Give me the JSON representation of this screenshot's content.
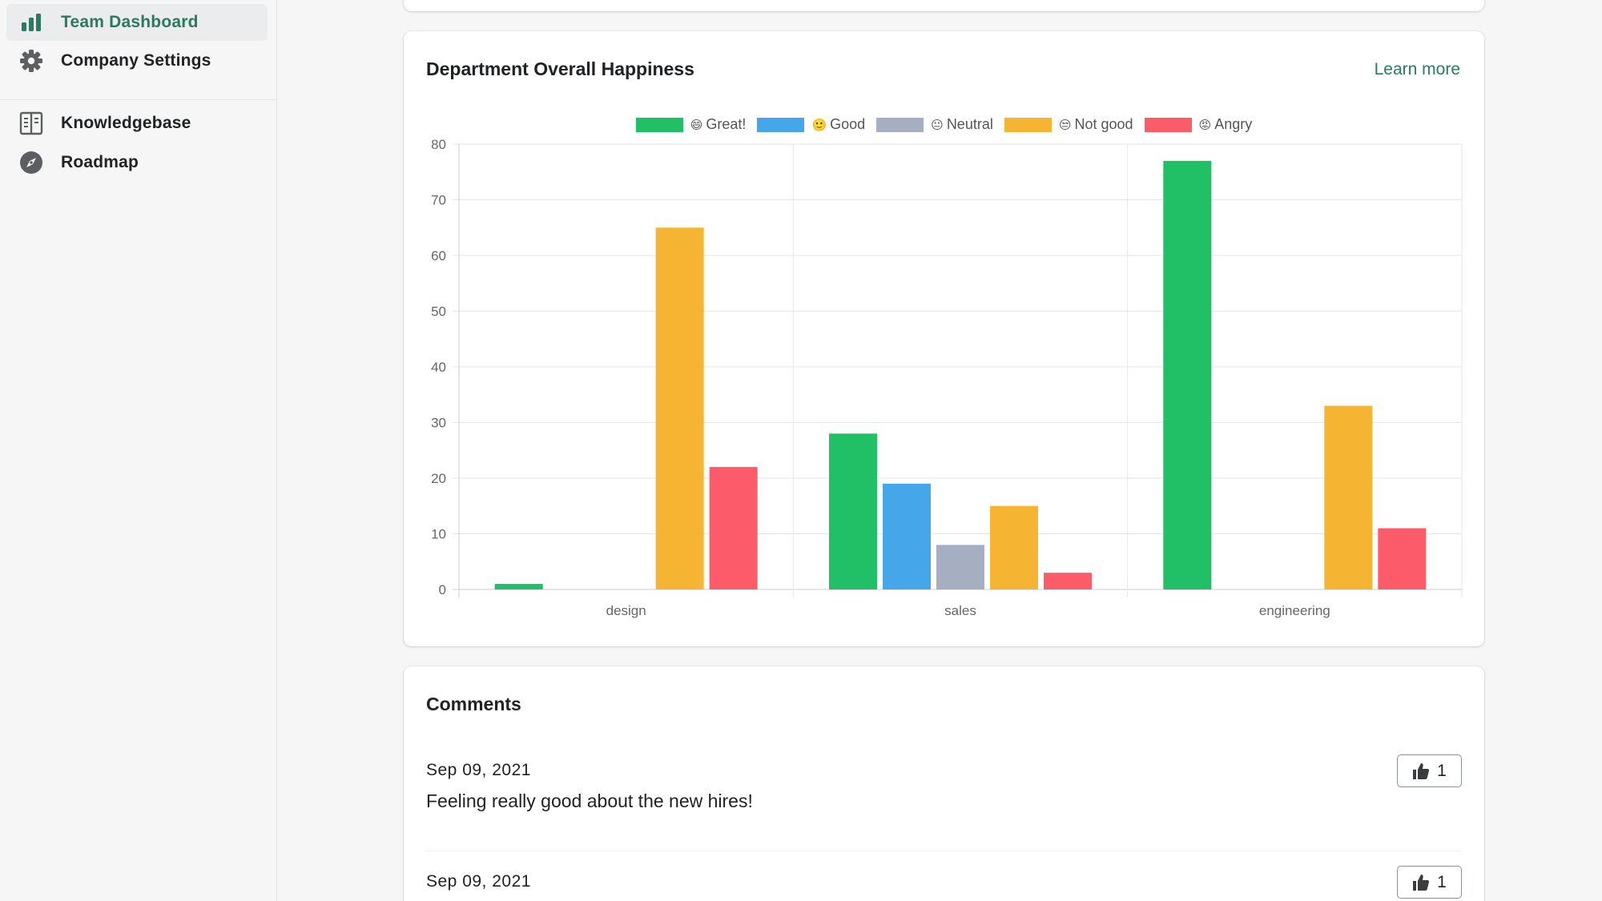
{
  "sidebar": {
    "items": [
      {
        "label": "Team Dashboard",
        "icon": "bar-chart-icon",
        "active": true
      },
      {
        "label": "Company Settings",
        "icon": "gear-icon",
        "active": false
      },
      {
        "label": "Knowledgebase",
        "icon": "book-icon",
        "active": false
      },
      {
        "label": "Roadmap",
        "icon": "compass-icon",
        "active": false
      }
    ]
  },
  "happiness_card": {
    "title": "Department Overall Happiness",
    "learn_more": "Learn more"
  },
  "chart_data": {
    "type": "bar",
    "categories": [
      "design",
      "sales",
      "engineering"
    ],
    "ylim": [
      0,
      80
    ],
    "yticks": [
      0,
      10,
      20,
      30,
      40,
      50,
      60,
      70,
      80
    ],
    "legend_position": "top",
    "grid": true,
    "series": [
      {
        "name": "Great!",
        "emoji": "😄",
        "color": "#21bf66",
        "values": [
          1,
          28,
          77
        ]
      },
      {
        "name": "Good",
        "emoji": "🙂",
        "color": "#45a6ea",
        "values": [
          0,
          19,
          0
        ]
      },
      {
        "name": "Neutral",
        "emoji": "😐",
        "color": "#a5afc1",
        "values": [
          0,
          8,
          0
        ]
      },
      {
        "name": "Not good",
        "emoji": "😒",
        "color": "#f5b432",
        "values": [
          65,
          15,
          33
        ]
      },
      {
        "name": "Angry",
        "emoji": "😡",
        "color": "#fc5c69",
        "values": [
          22,
          3,
          11
        ]
      }
    ]
  },
  "comments_card": {
    "title": "Comments",
    "comments": [
      {
        "date": "Sep 09, 2021",
        "text": "Feeling really good about the new hires!",
        "likes": "1"
      },
      {
        "date": "Sep 09, 2021",
        "text": "",
        "likes": "1"
      }
    ]
  }
}
